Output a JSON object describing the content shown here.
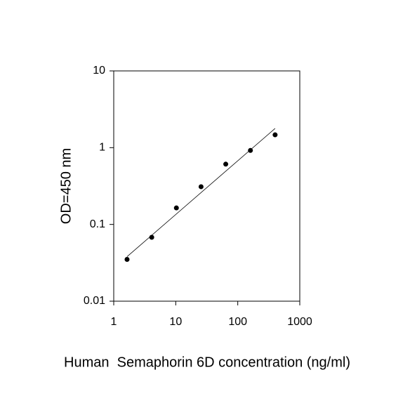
{
  "chart_data": {
    "type": "scatter",
    "xlabel": "Human  Semaphorin 6D concentration (ng/ml)",
    "ylabel": "OD=450 nm",
    "x": [
      1.64,
      4.1,
      10.24,
      25.6,
      64,
      160,
      400
    ],
    "values": [
      0.035,
      0.068,
      0.164,
      0.31,
      0.61,
      0.92,
      1.47
    ],
    "color": "#000000",
    "fit": {
      "x": [
        1.64,
        400
      ],
      "y": [
        0.038,
        1.78
      ]
    },
    "xlog": true,
    "ylog": true,
    "xlim": [
      1,
      1000
    ],
    "ylim": [
      0.01,
      10
    ],
    "xticks": [
      1,
      10,
      100,
      1000
    ],
    "yticks": [
      0.01,
      0.1,
      1,
      10
    ],
    "grid": false
  }
}
